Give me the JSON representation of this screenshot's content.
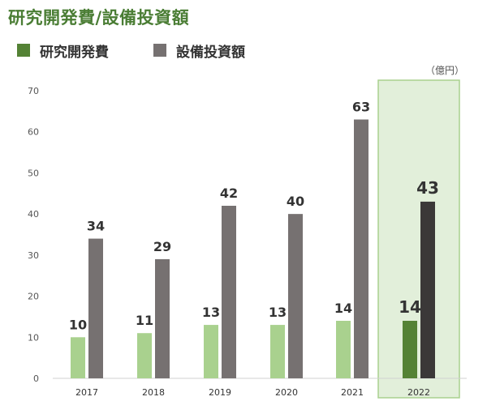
{
  "title": "研究開発費/設備投資額",
  "unit": "（億円）",
  "chart_data": {
    "type": "bar",
    "title": "研究開発費/設備投資額",
    "categories": [
      "2017",
      "2018",
      "2019",
      "2020",
      "2021",
      "2022"
    ],
    "series": [
      {
        "name": "研究開発費",
        "values": [
          10,
          11,
          13,
          13,
          14,
          14
        ]
      },
      {
        "name": "設備投資額",
        "values": [
          34,
          29,
          42,
          40,
          63,
          43
        ]
      }
    ],
    "ylim": [
      0,
      70
    ],
    "yticks": [
      0,
      10,
      20,
      30,
      40,
      50,
      60,
      70
    ],
    "ytick_labels": [
      "0",
      "10",
      "20",
      "30",
      "40",
      "50",
      "60",
      "70"
    ],
    "ylabel": "",
    "xlabel": "",
    "unit": "（億円）",
    "highlight_category": "2022",
    "grid": false,
    "legend_position": "top-left",
    "colors": {
      "rd": "#a9d18e",
      "capex": "#767171",
      "rd_highlight": "#548235",
      "capex_highlight": "#3b3838",
      "highlight_bg": "#e2efda",
      "highlight_border": "#a9d18e",
      "title": "#4a7d34"
    }
  }
}
